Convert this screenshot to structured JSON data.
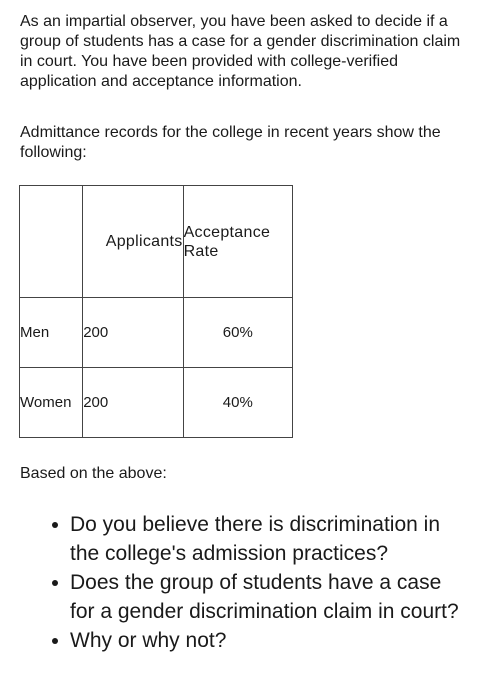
{
  "intro": "As an impartial observer, you have been asked to decide if a group of students has a case for a gender discrimination claim in court. You have been provided with college-verified application and acceptance information.",
  "records_intro": "Admittance records for the college in recent years show the following:",
  "table": {
    "headers": {
      "category": "",
      "applicants": "Applicants",
      "acceptance_line1": "Acceptance",
      "acceptance_line2": "Rate"
    },
    "rows": [
      {
        "category": "Men",
        "applicants": "200",
        "rate": "60%"
      },
      {
        "category": "Women",
        "applicants": "200",
        "rate": "40%"
      }
    ]
  },
  "based_on": "Based on the above:",
  "questions": [
    "Do you believe there is discrimination in the college's admission practices?",
    "Does the group of students have a case for a gender discrimination claim in court?",
    "Why or why not?"
  ]
}
